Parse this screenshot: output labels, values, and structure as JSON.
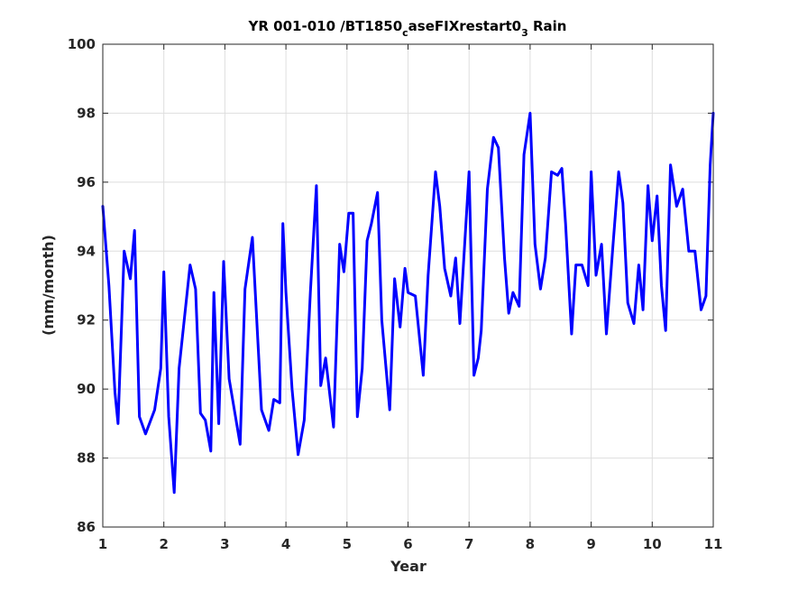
{
  "chart_data": {
    "type": "line",
    "title": {
      "part1": "YR 001-010 /BT1850",
      "sub1": "c",
      "part2": "aseFIXrestart0",
      "sub2": "3",
      "part3": " Rain"
    },
    "xlabel": "Year",
    "ylabel": "(mm/month)",
    "xlim": [
      1,
      11
    ],
    "ylim": [
      86,
      100
    ],
    "xticks": [
      1,
      2,
      3,
      4,
      5,
      6,
      7,
      8,
      9,
      10,
      11
    ],
    "yticks": [
      86,
      88,
      90,
      92,
      94,
      96,
      98,
      100
    ],
    "xtick_labels": [
      "1",
      "2",
      "3",
      "4",
      "5",
      "6",
      "7",
      "8",
      "9",
      "10",
      "11"
    ],
    "ytick_labels": [
      "86",
      "88",
      "90",
      "92",
      "94",
      "96",
      "98",
      "100"
    ],
    "grid": true,
    "line_color": "#0000ff",
    "series": [
      {
        "x": [
          1.0,
          1.1,
          1.2,
          1.25,
          1.35,
          1.45,
          1.52,
          1.6,
          1.7,
          1.85,
          1.95,
          2.0,
          2.08,
          2.17,
          2.25,
          2.43,
          2.52,
          2.6,
          2.68,
          2.77,
          2.82,
          2.9,
          2.98,
          3.07,
          3.25,
          3.33,
          3.45,
          3.6,
          3.72,
          3.8,
          3.9,
          3.95,
          4.0,
          4.1,
          4.2,
          4.3,
          4.4,
          4.5,
          4.57,
          4.65,
          4.78,
          4.88,
          4.95,
          5.03,
          5.1,
          5.17,
          5.25,
          5.33,
          5.4,
          5.5,
          5.57,
          5.7,
          5.78,
          5.87,
          5.95,
          6.0,
          6.12,
          6.25,
          6.33,
          6.45,
          6.52,
          6.6,
          6.7,
          6.78,
          6.85,
          7.0,
          7.08,
          7.15,
          7.2,
          7.3,
          7.4,
          7.48,
          7.58,
          7.65,
          7.72,
          7.82,
          7.9,
          8.0,
          8.08,
          8.17,
          8.25,
          8.35,
          8.45,
          8.52,
          8.58,
          8.68,
          8.75,
          8.85,
          8.95,
          9.0,
          9.08,
          9.17,
          9.25,
          9.35,
          9.45,
          9.52,
          9.6,
          9.7,
          9.78,
          9.85,
          9.93,
          10.0,
          10.08,
          10.15,
          10.22,
          10.3,
          10.4,
          10.5,
          10.6,
          10.7,
          10.8,
          10.88,
          10.95,
          11.0
        ],
        "y": [
          95.3,
          93.0,
          89.9,
          89.0,
          94.0,
          93.2,
          94.6,
          89.2,
          88.7,
          89.4,
          90.6,
          93.4,
          89.2,
          87.0,
          90.6,
          93.6,
          92.9,
          89.3,
          89.1,
          88.2,
          92.8,
          89.0,
          93.7,
          90.3,
          88.4,
          92.9,
          94.4,
          89.4,
          88.8,
          89.7,
          89.6,
          94.8,
          92.8,
          90.0,
          88.1,
          89.1,
          92.8,
          95.9,
          90.1,
          90.9,
          88.9,
          94.2,
          93.4,
          95.1,
          95.1,
          89.2,
          90.6,
          94.3,
          94.8,
          95.7,
          92.0,
          89.4,
          93.2,
          91.8,
          93.5,
          92.8,
          92.7,
          90.4,
          93.3,
          96.3,
          95.3,
          93.5,
          92.7,
          93.8,
          91.9,
          96.3,
          90.4,
          90.9,
          91.7,
          95.8,
          97.3,
          97.0,
          93.8,
          92.2,
          92.8,
          92.4,
          96.8,
          98.0,
          94.2,
          92.9,
          93.8,
          96.3,
          96.2,
          96.4,
          94.8,
          91.6,
          93.6,
          93.6,
          93.0,
          96.3,
          93.3,
          94.2,
          91.6,
          94.0,
          96.3,
          95.4,
          92.5,
          91.9,
          93.6,
          92.3,
          95.9,
          94.3,
          95.6,
          93.0,
          91.7,
          96.5,
          95.3,
          95.8,
          94.0,
          94.0,
          92.3,
          92.7,
          96.5,
          98.0
        ]
      }
    ]
  }
}
